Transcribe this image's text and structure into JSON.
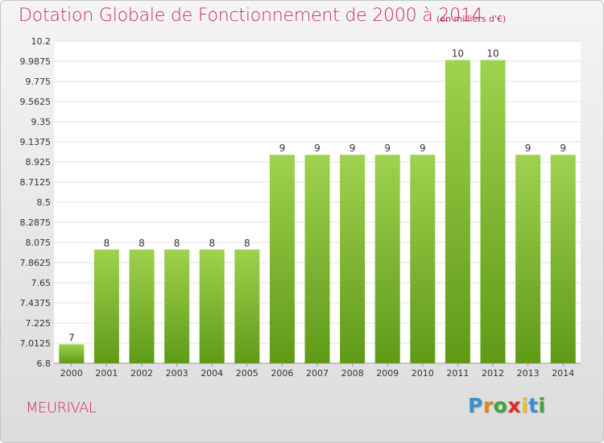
{
  "chart_data": {
    "type": "bar",
    "title": "Dotation Globale de Fonctionnement de 2000 à 2014",
    "unit": "(en milliers d'€)",
    "categories": [
      "2000",
      "2001",
      "2002",
      "2003",
      "2004",
      "2005",
      "2006",
      "2007",
      "2008",
      "2009",
      "2010",
      "2011",
      "2012",
      "2013",
      "2014"
    ],
    "values": [
      7,
      8,
      8,
      8,
      8,
      8,
      9,
      9,
      9,
      9,
      9,
      10,
      10,
      9,
      9
    ],
    "value_labels": [
      "7",
      "8",
      "8",
      "8",
      "8",
      "8",
      "9",
      "9",
      "9",
      "9",
      "9",
      "10",
      "10",
      "9",
      "9"
    ],
    "bar_tops": [
      7.0,
      8.0,
      8.0,
      8.0,
      8.0,
      8.0,
      9.0,
      9.0,
      9.0,
      9.0,
      9.0,
      10.0,
      10.0,
      9.0,
      9.0
    ],
    "yticks": [
      "10.2",
      "9.9875",
      "9.775",
      "9.5625",
      "9.35",
      "9.1375",
      "8.925",
      "8.7125",
      "8.5",
      "8.2875",
      "8.075",
      "7.8625",
      "7.65",
      "7.4375",
      "7.225",
      "7.0125",
      "6.8"
    ],
    "ylim": [
      6.8,
      10.2
    ],
    "grid": true,
    "bar_color": "#7bbf2e"
  },
  "commune": "MEURIVAL",
  "logo": {
    "letters": [
      "P",
      "r",
      "o",
      "x",
      "i",
      "t",
      "i"
    ],
    "colors": [
      "#3a8fd0",
      "#e8851a",
      "#3aa635",
      "#e2261f",
      "#f1c40f",
      "#3a8fd0",
      "#3aa635"
    ]
  }
}
